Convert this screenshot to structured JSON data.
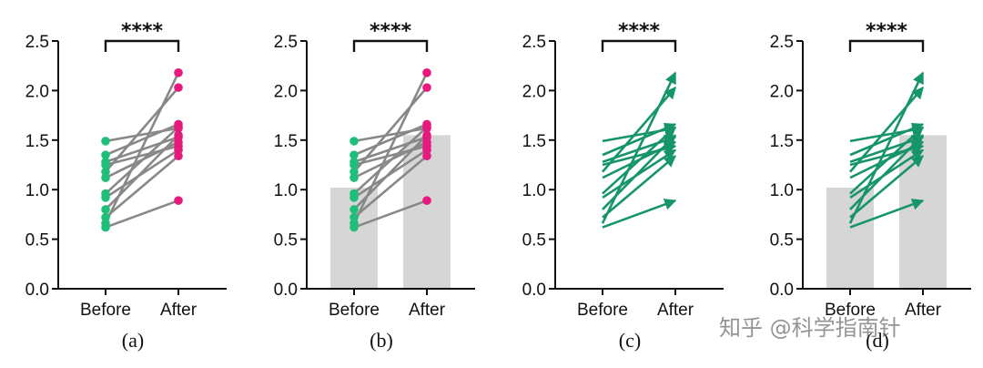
{
  "colors": {
    "before": "#1fbf7a",
    "after": "#e6197f",
    "line": "#888888",
    "arrow": "#16946a",
    "bar": "#d6d6d6",
    "axis": "#111111"
  },
  "watermark": "知乎 @科学指南针",
  "chart_data": [
    {
      "type": "paired-points",
      "panel_label": "(a)",
      "categories": [
        "Before",
        "After"
      ],
      "ylim": [
        0,
        2.5
      ],
      "yticks": [
        "0.0",
        "0.5",
        "1.0",
        "1.5",
        "2.0",
        "2.5"
      ],
      "significance": "****",
      "bars": false,
      "arrows": false,
      "pairs": [
        [
          1.49,
          1.62
        ],
        [
          1.35,
          1.66
        ],
        [
          1.28,
          1.53
        ],
        [
          1.25,
          1.44
        ],
        [
          1.18,
          2.03
        ],
        [
          1.12,
          1.48
        ],
        [
          0.96,
          1.63
        ],
        [
          0.92,
          1.4
        ],
        [
          0.8,
          1.55
        ],
        [
          0.72,
          1.34
        ],
        [
          0.66,
          2.18
        ],
        [
          0.62,
          0.89
        ]
      ]
    },
    {
      "type": "paired-points-with-bars",
      "panel_label": "(b)",
      "categories": [
        "Before",
        "After"
      ],
      "ylim": [
        0,
        2.5
      ],
      "yticks": [
        "0.0",
        "0.5",
        "1.0",
        "1.5",
        "2.0",
        "2.5"
      ],
      "significance": "****",
      "bars": true,
      "bar_values": [
        1.02,
        1.55
      ],
      "arrows": false,
      "pairs": [
        [
          1.49,
          1.62
        ],
        [
          1.35,
          1.66
        ],
        [
          1.28,
          1.53
        ],
        [
          1.25,
          1.44
        ],
        [
          1.18,
          2.03
        ],
        [
          1.12,
          1.48
        ],
        [
          0.96,
          1.63
        ],
        [
          0.92,
          1.4
        ],
        [
          0.8,
          1.55
        ],
        [
          0.72,
          1.34
        ],
        [
          0.66,
          2.18
        ],
        [
          0.62,
          0.89
        ]
      ]
    },
    {
      "type": "paired-arrows",
      "panel_label": "(c)",
      "categories": [
        "Before",
        "After"
      ],
      "ylim": [
        0,
        2.5
      ],
      "yticks": [
        "0.0",
        "0.5",
        "1.0",
        "1.5",
        "2.0",
        "2.5"
      ],
      "significance": "****",
      "bars": false,
      "arrows": true,
      "pairs": [
        [
          1.49,
          1.62
        ],
        [
          1.35,
          1.66
        ],
        [
          1.28,
          1.53
        ],
        [
          1.25,
          1.44
        ],
        [
          1.18,
          2.03
        ],
        [
          1.12,
          1.48
        ],
        [
          0.96,
          1.63
        ],
        [
          0.92,
          1.4
        ],
        [
          0.8,
          1.55
        ],
        [
          0.72,
          1.34
        ],
        [
          0.66,
          2.18
        ],
        [
          0.62,
          0.89
        ]
      ]
    },
    {
      "type": "paired-arrows-with-bars",
      "panel_label": "(d)",
      "categories": [
        "Before",
        "After"
      ],
      "ylim": [
        0,
        2.5
      ],
      "yticks": [
        "0.0",
        "0.5",
        "1.0",
        "1.5",
        "2.0",
        "2.5"
      ],
      "significance": "****",
      "bars": true,
      "bar_values": [
        1.02,
        1.55
      ],
      "arrows": true,
      "pairs": [
        [
          1.49,
          1.62
        ],
        [
          1.35,
          1.66
        ],
        [
          1.28,
          1.53
        ],
        [
          1.25,
          1.44
        ],
        [
          1.18,
          2.03
        ],
        [
          1.12,
          1.48
        ],
        [
          0.96,
          1.63
        ],
        [
          0.92,
          1.4
        ],
        [
          0.8,
          1.55
        ],
        [
          0.72,
          1.34
        ],
        [
          0.66,
          2.18
        ],
        [
          0.62,
          0.89
        ]
      ]
    }
  ]
}
